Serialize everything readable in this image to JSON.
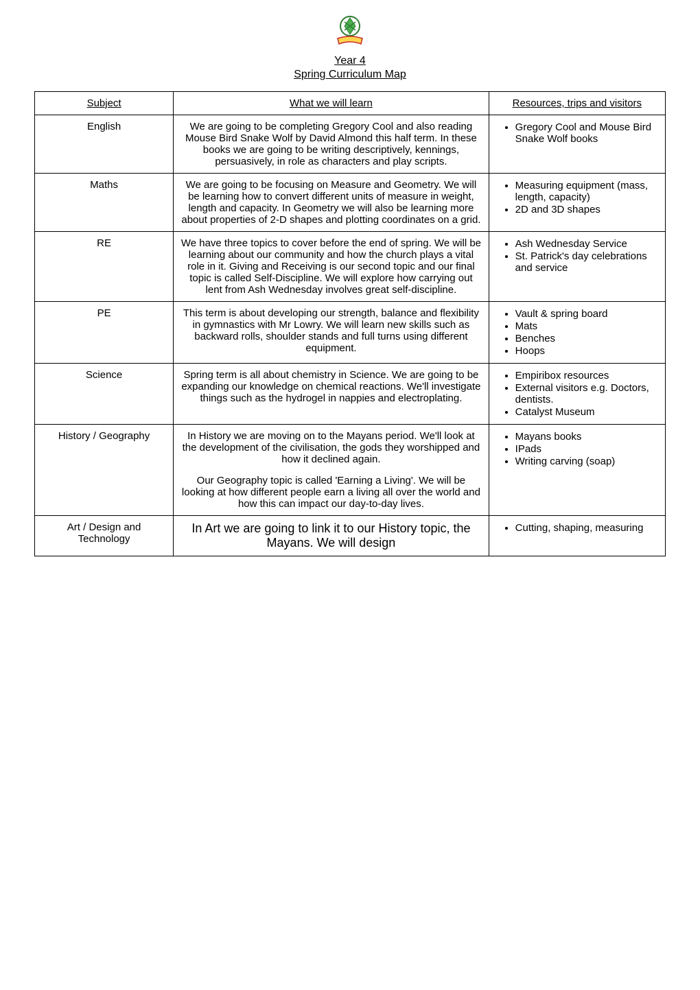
{
  "header": {
    "year": "Year 4",
    "subtitle": "Spring Curriculum Map"
  },
  "columns": {
    "subject": "Subject",
    "learn": "What we will learn",
    "resources": "Resources, trips and visitors"
  },
  "rows": [
    {
      "subject": "English",
      "learn": "We are going to be completing Gregory Cool and also reading Mouse Bird Snake Wolf by David Almond this half term. In these books we are going to be writing descriptively, kennings, persuasively, in role as characters and play scripts.",
      "resources": [
        "Gregory Cool and Mouse Bird Snake Wolf books"
      ]
    },
    {
      "subject": "Maths",
      "learn": "We are going to be focusing on Measure and Geometry. We will be learning how to convert different units of measure in weight, length and capacity. In Geometry we will also be learning more about properties of 2-D shapes and plotting coordinates on a grid.",
      "resources": [
        "Measuring equipment (mass, length, capacity)",
        "2D and 3D shapes"
      ]
    },
    {
      "subject": "RE",
      "learn": "We have three topics to cover before the end of spring. We will be learning about our community and how the church plays a vital role in it. Giving and Receiving is our second topic and our final topic is called Self-Discipline. We will explore how carrying out lent from Ash Wednesday involves great self-discipline.",
      "resources": [
        "Ash Wednesday Service",
        "St. Patrick's day celebrations and service"
      ]
    },
    {
      "subject": "PE",
      "learn": "This term is about developing our strength, balance and flexibility in gymnastics with Mr Lowry. We will learn new skills such as backward rolls, shoulder stands and full turns using different equipment.",
      "resources": [
        "Vault & spring board",
        "Mats",
        "Benches",
        "Hoops"
      ]
    },
    {
      "subject": "Science",
      "learn": "Spring term is all about chemistry in Science. We are going to be expanding our knowledge on chemical reactions. We'll investigate things such as the hydrogel in nappies and electroplating.",
      "resources": [
        "Empiribox resources",
        "External visitors e.g. Doctors, dentists.",
        "Catalyst Museum"
      ]
    },
    {
      "subject": "History / Geography",
      "learn": "In History we are moving on to the Mayans period. We'll look at the development of the civilisation, the gods they worshipped and how it declined again.\n\nOur Geography topic is called 'Earning a Living'. We will be looking at how different people earn a living all over the world and how this can impact our day-to-day lives.",
      "resources": [
        "Mayans books",
        "IPads",
        "Writing carving (soap)"
      ]
    },
    {
      "subject": "Art / Design and Technology",
      "learn": "In Art we are going to link it to our History topic, the Mayans. We will design",
      "resources": [
        "Cutting, shaping, measuring"
      ]
    }
  ],
  "logo": {
    "stroke_color": "#2e7d32",
    "fill_color": "#4caf50",
    "banner_color": "#c62828",
    "banner_fill": "#ffd54f"
  }
}
